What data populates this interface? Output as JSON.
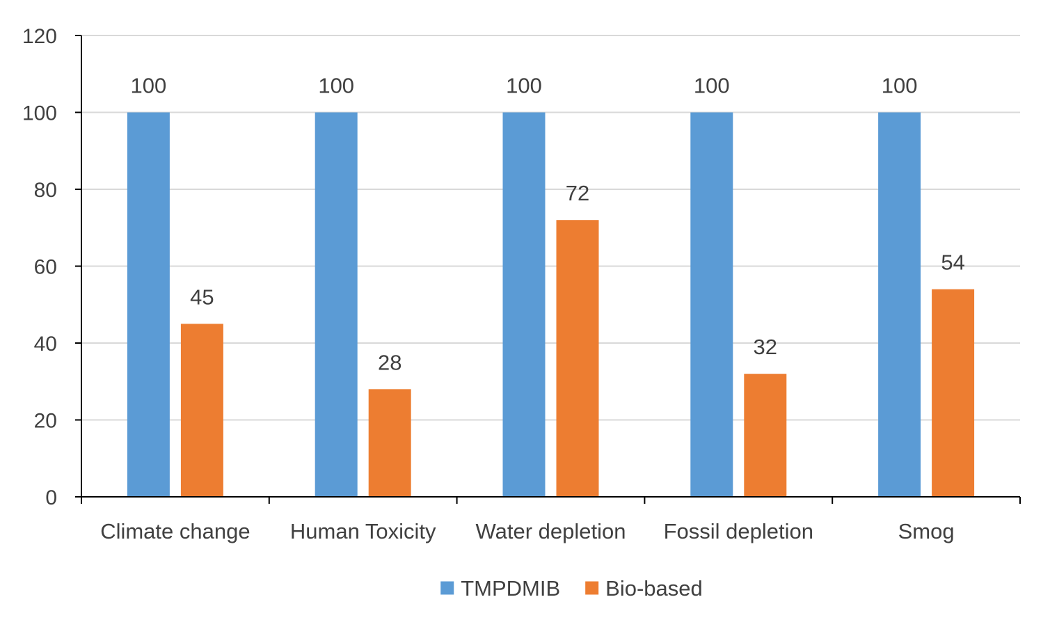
{
  "chart_data": {
    "type": "bar",
    "title": "",
    "xlabel": "",
    "ylabel": "",
    "categories": [
      "Climate change",
      "Human Toxicity",
      "Water depletion",
      "Fossil depletion",
      "Smog"
    ],
    "series": [
      {
        "name": "TMPDMIB",
        "color": "#5B9BD5",
        "values": [
          100,
          100,
          100,
          100,
          100
        ]
      },
      {
        "name": "Bio-based",
        "color": "#ED7D31",
        "values": [
          45,
          28,
          72,
          32,
          54
        ]
      }
    ],
    "ylim": [
      0,
      120
    ],
    "yticks": [
      0,
      20,
      40,
      60,
      80,
      100,
      120
    ],
    "grid": true,
    "data_labels": true,
    "legend_position": "bottom",
    "colors": {
      "gridline": "#D9D9D9",
      "axis": "#000000",
      "text": "#404040"
    }
  }
}
